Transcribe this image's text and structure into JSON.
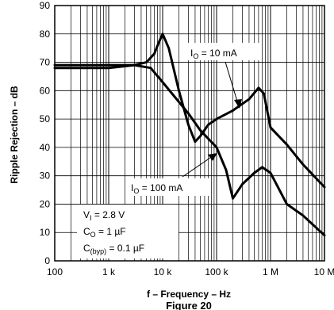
{
  "chart_data": {
    "type": "line",
    "title": "",
    "xlabel": "f – Frequency – Hz",
    "ylabel": "Ripple Rejection – dB",
    "x_scale": "log",
    "xlim": [
      100,
      10000000
    ],
    "ylim": [
      0,
      90
    ],
    "x_ticks": [
      100,
      1000,
      10000,
      100000,
      1000000,
      10000000
    ],
    "x_tick_labels": [
      "100",
      "1 k",
      "10 k",
      "100 k",
      "1 M",
      "10 M"
    ],
    "y_ticks": [
      0,
      10,
      20,
      30,
      40,
      50,
      60,
      70,
      80,
      90
    ],
    "y_tick_labels": [
      "0",
      "10",
      "20",
      "30",
      "40",
      "50",
      "60",
      "70",
      "80",
      "90"
    ],
    "grid": true,
    "series": [
      {
        "name": "IO = 10 mA",
        "x": [
          100,
          300,
          1000,
          3000,
          5000,
          7000,
          8500,
          10000,
          13000,
          20000,
          30000,
          40000,
          50000,
          70000,
          100000,
          200000,
          400000,
          600000,
          750000,
          1000000,
          2000000,
          4000000,
          10000000
        ],
        "y": [
          69,
          69,
          69,
          69,
          70,
          73,
          77,
          80,
          75,
          60,
          48,
          42,
          44,
          48,
          50,
          53,
          57,
          61,
          59,
          47,
          41,
          34,
          26
        ]
      },
      {
        "name": "IO = 100 mA",
        "x": [
          100,
          300,
          1000,
          3000,
          6000,
          10000,
          20000,
          30000,
          50000,
          100000,
          150000,
          200000,
          300000,
          500000,
          700000,
          1000000,
          2000000,
          4000000,
          10000000
        ],
        "y": [
          68,
          68,
          68,
          69,
          68,
          63,
          56,
          52,
          46,
          40,
          32,
          22,
          27,
          31,
          33,
          31,
          20,
          16,
          9
        ]
      }
    ],
    "annotations": {
      "series_label_10": {
        "main": "I",
        "sub": "O",
        "rest": " = 10 mA"
      },
      "series_label_100": {
        "main": "I",
        "sub": "O",
        "rest": " = 100 mA"
      },
      "conditions": [
        {
          "main": "V",
          "sub": "I",
          "rest": " = 2.8 V"
        },
        {
          "main": "C",
          "sub": "O",
          "rest": " = 1 µF"
        },
        {
          "main": "C",
          "sub": "(byp)",
          "rest": " = 0.1 µF"
        }
      ]
    },
    "caption": "Figure 20"
  }
}
